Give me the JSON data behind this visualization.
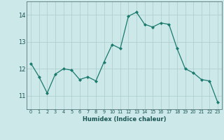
{
  "x": [
    0,
    1,
    2,
    3,
    4,
    5,
    6,
    7,
    8,
    9,
    10,
    11,
    12,
    13,
    14,
    15,
    16,
    17,
    18,
    19,
    20,
    21,
    22,
    23
  ],
  "y": [
    12.2,
    11.7,
    11.1,
    11.8,
    12.0,
    11.95,
    11.6,
    11.7,
    11.55,
    12.25,
    12.9,
    12.75,
    13.95,
    14.1,
    13.65,
    13.55,
    13.7,
    13.65,
    12.75,
    12.0,
    11.85,
    11.6,
    11.55,
    10.75
  ],
  "xlabel": "Humidex (Indice chaleur)",
  "ylim": [
    10.5,
    14.5
  ],
  "xlim": [
    -0.5,
    23.5
  ],
  "yticks": [
    11,
    12,
    13,
    14
  ],
  "xtick_labels": [
    "0",
    "1",
    "2",
    "3",
    "4",
    "5",
    "6",
    "7",
    "8",
    "9",
    "10",
    "11",
    "12",
    "13",
    "14",
    "15",
    "16",
    "17",
    "18",
    "19",
    "20",
    "21",
    "22",
    "23"
  ],
  "line_color": "#1a7a6e",
  "marker_color": "#1a7a6e",
  "bg_color": "#cce8e8",
  "grid_color": "#aacccc",
  "xlabel_fontsize": 6.0,
  "xtick_fontsize": 4.8,
  "ytick_fontsize": 6.0
}
